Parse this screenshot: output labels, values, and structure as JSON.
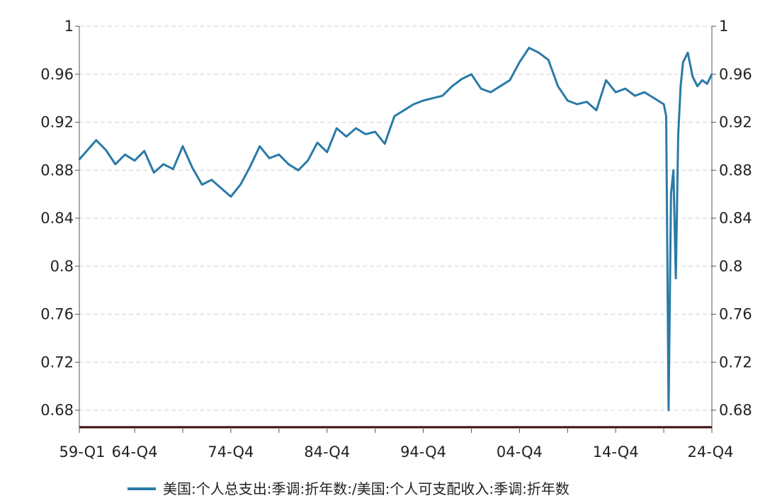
{
  "chart_data": {
    "type": "line",
    "title": "",
    "xlabel": "",
    "ylabel": "",
    "ylim": [
      0.68,
      1.0
    ],
    "y_ticks": [
      1,
      0.96,
      0.92,
      0.88,
      0.84,
      0.8,
      0.76,
      0.72,
      0.68
    ],
    "y_tick_labels": [
      "1",
      "0.96",
      "0.92",
      "0.88",
      "0.84",
      "0.8",
      "0.76",
      "0.72",
      "0.68"
    ],
    "x_tick_labels": [
      "59-Q1",
      "64-Q4",
      "74-Q4",
      "84-Q4",
      "94-Q4",
      "04-Q4",
      "14-Q4",
      "24-Q4"
    ],
    "grid": true,
    "dual_y_axis": true,
    "legend_position": "bottom",
    "colors": {
      "series": "#2a7aa6",
      "grid": "#d0d0d0",
      "axis": "#555555",
      "baseline": "#3a0c0c"
    },
    "series": [
      {
        "name": "美国:个人总支出:季调:折年数:/美国:个人可支配收入:季调:折年数",
        "x": [
          "1959-Q1",
          "1960-Q4",
          "1961-Q4",
          "1962-Q4",
          "1963-Q4",
          "1964-Q4",
          "1965-Q4",
          "1966-Q4",
          "1967-Q4",
          "1968-Q4",
          "1969-Q4",
          "1970-Q4",
          "1971-Q4",
          "1972-Q4",
          "1973-Q4",
          "1974-Q4",
          "1975-Q4",
          "1976-Q4",
          "1977-Q4",
          "1978-Q4",
          "1979-Q4",
          "1980-Q4",
          "1981-Q4",
          "1982-Q4",
          "1983-Q4",
          "1984-Q4",
          "1985-Q4",
          "1986-Q4",
          "1987-Q4",
          "1988-Q4",
          "1989-Q4",
          "1990-Q4",
          "1991-Q4",
          "1992-Q4",
          "1993-Q4",
          "1994-Q4",
          "1995-Q4",
          "1996-Q4",
          "1997-Q4",
          "1998-Q4",
          "1999-Q4",
          "2000-Q4",
          "2001-Q4",
          "2002-Q4",
          "2003-Q4",
          "2004-Q4",
          "2005-Q4",
          "2006-Q4",
          "2007-Q4",
          "2008-Q4",
          "2009-Q4",
          "2010-Q4",
          "2011-Q4",
          "2012-Q4",
          "2013-Q4",
          "2014-Q4",
          "2015-Q4",
          "2016-Q4",
          "2017-Q4",
          "2018-Q4",
          "2019-Q4",
          "2020-Q1",
          "2020-Q2",
          "2020-Q3",
          "2020-Q4",
          "2021-Q1",
          "2021-Q2",
          "2021-Q3",
          "2021-Q4",
          "2022-Q2",
          "2022-Q4",
          "2023-Q2",
          "2023-Q4",
          "2024-Q2",
          "2024-Q4"
        ],
        "values": [
          0.889,
          0.905,
          0.897,
          0.885,
          0.893,
          0.888,
          0.896,
          0.878,
          0.885,
          0.881,
          0.9,
          0.882,
          0.868,
          0.872,
          0.865,
          0.858,
          0.868,
          0.883,
          0.9,
          0.89,
          0.893,
          0.885,
          0.88,
          0.888,
          0.903,
          0.895,
          0.915,
          0.908,
          0.915,
          0.91,
          0.912,
          0.902,
          0.925,
          0.93,
          0.935,
          0.938,
          0.94,
          0.942,
          0.95,
          0.956,
          0.96,
          0.948,
          0.945,
          0.95,
          0.955,
          0.97,
          0.982,
          0.978,
          0.972,
          0.95,
          0.938,
          0.935,
          0.937,
          0.93,
          0.955,
          0.945,
          0.948,
          0.942,
          0.945,
          0.94,
          0.935,
          0.925,
          0.68,
          0.86,
          0.88,
          0.79,
          0.91,
          0.95,
          0.97,
          0.978,
          0.958,
          0.95,
          0.955,
          0.952,
          0.96
        ]
      }
    ]
  }
}
